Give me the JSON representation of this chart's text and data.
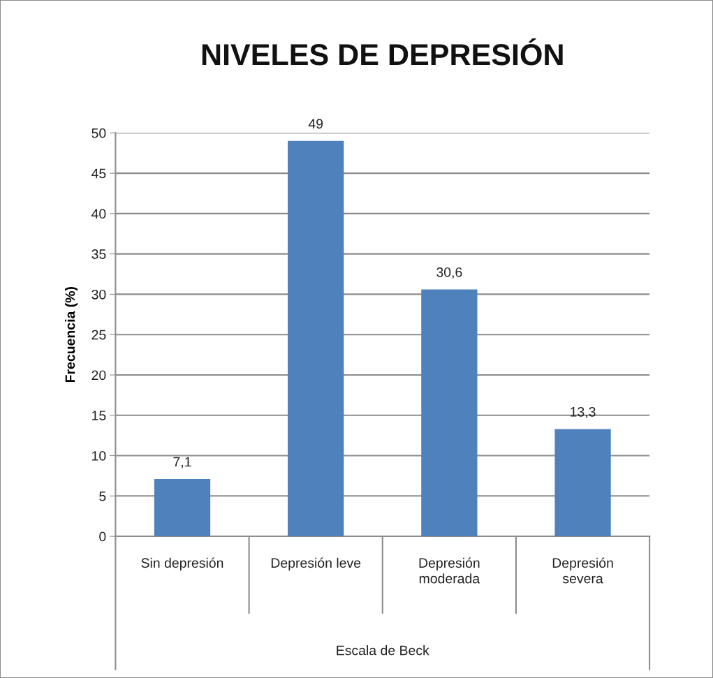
{
  "chart_data": {
    "type": "bar",
    "title": "NIVELES DE DEPRESIÓN",
    "xlabel": "Escala de Beck",
    "ylabel": "Frecuencia (%)",
    "categories": [
      "Sin depresión",
      "Depresión leve",
      "Depresión moderada",
      "Depresión severa"
    ],
    "values": [
      7.1,
      49,
      30.6,
      13.3
    ],
    "value_labels": [
      "7,1",
      "49",
      "30,6",
      "13,3"
    ],
    "color": "#4f81bd",
    "ylim": [
      0,
      50
    ],
    "yticks": [
      0,
      5,
      10,
      15,
      20,
      25,
      30,
      35,
      40,
      45,
      50
    ],
    "grid": "y"
  }
}
